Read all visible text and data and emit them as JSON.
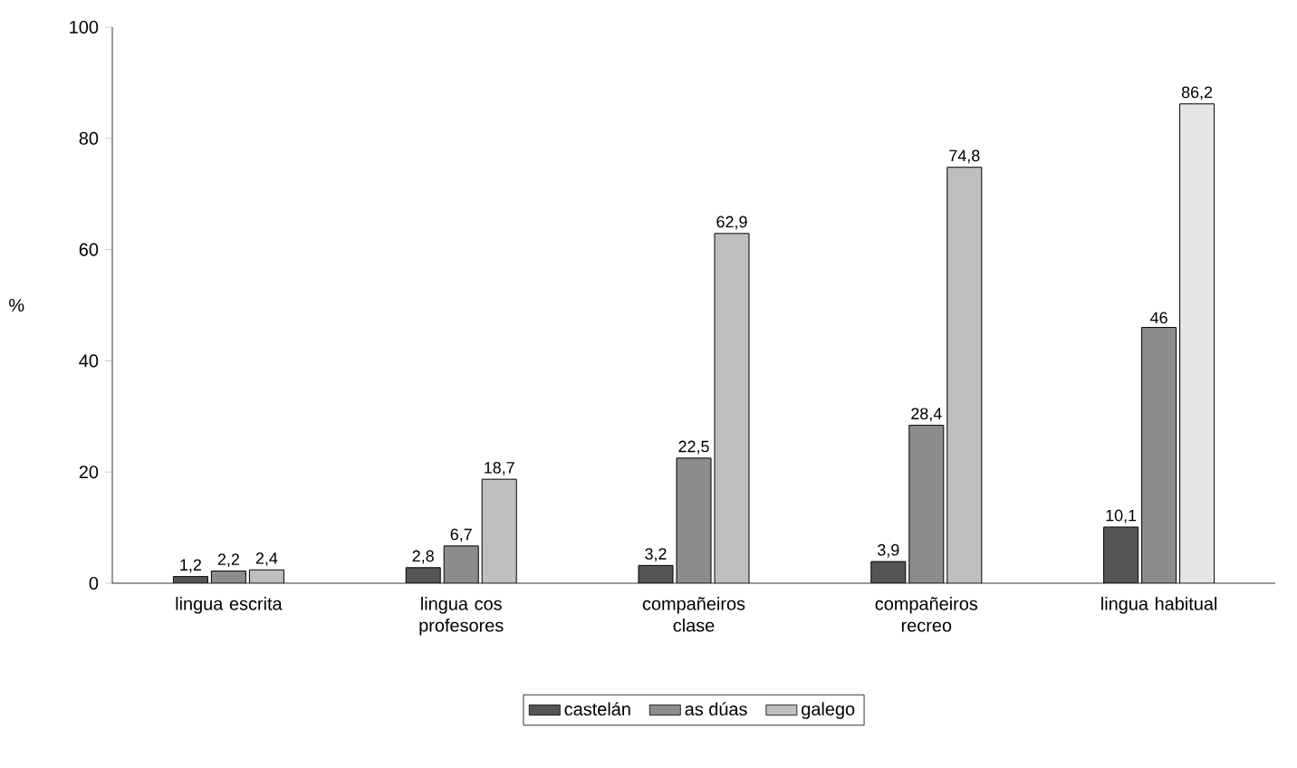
{
  "chart_data": {
    "type": "bar",
    "ylabel": "%",
    "categories": [
      "lingua escrita",
      "lingua cos profesores",
      "compañeiros clase",
      "compañeiros recreo",
      "lingua habitual"
    ],
    "ylim": [
      0,
      100
    ],
    "yticks": [
      0,
      20,
      40,
      60,
      80,
      100
    ],
    "legend": "bottom",
    "series": [
      {
        "name": "castelán",
        "color": "#555555",
        "values": [
          1.2,
          2.8,
          3.2,
          3.9,
          10.1
        ],
        "value_labels": [
          "1,2",
          "2,8",
          "3,2",
          "3,9",
          "10,1"
        ]
      },
      {
        "name": "as dúas",
        "color": "#8c8c8c",
        "values": [
          2.2,
          6.7,
          22.5,
          28.4,
          46
        ],
        "value_labels": [
          "2,2",
          "6,7",
          "22,5",
          "28,4",
          "46"
        ]
      },
      {
        "name": "galego",
        "color": "#bfbfbf",
        "colors": [
          "#bfbfbf",
          "#bfbfbf",
          "#bfbfbf",
          "#bfbfbf",
          "#e6e6e6"
        ],
        "values": [
          2.4,
          18.7,
          62.9,
          74.8,
          86.2
        ],
        "value_labels": [
          "2,4",
          "18,7",
          "62,9",
          "74,8",
          "86,2"
        ]
      }
    ]
  }
}
